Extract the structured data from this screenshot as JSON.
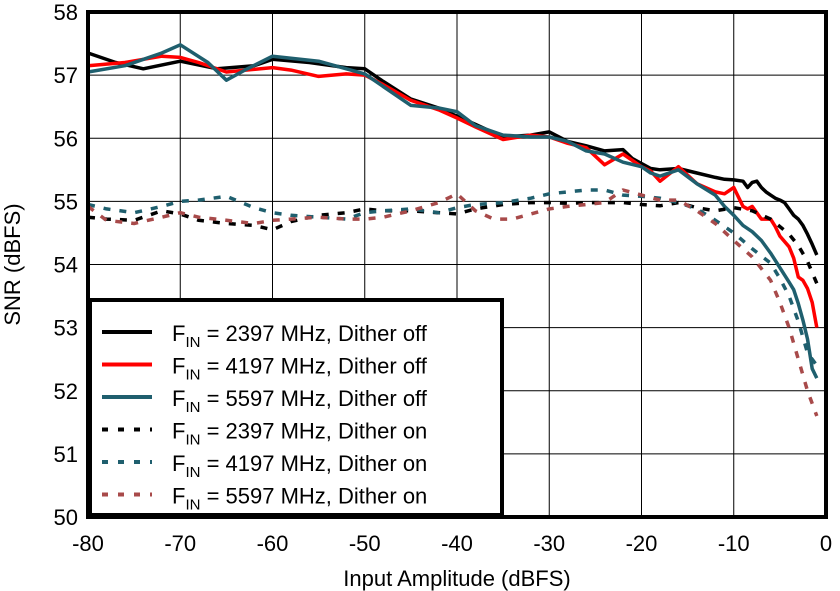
{
  "chart_data": {
    "type": "line",
    "title": "",
    "xlabel": "Input Amplitude (dBFS)",
    "ylabel": "SNR (dBFS)",
    "xlim": [
      -80,
      0
    ],
    "ylim": [
      50,
      58
    ],
    "xticks": [
      -80,
      -70,
      -60,
      -50,
      -40,
      -30,
      -20,
      -10,
      0
    ],
    "xtick_labels": [
      "-80",
      "-70",
      "-60",
      "-50",
      "-40",
      "-30",
      "-20",
      "-10",
      "0"
    ],
    "yticks": [
      50,
      51,
      52,
      53,
      54,
      55,
      56,
      57,
      58
    ],
    "ytick_labels": [
      "50",
      "51",
      "52",
      "53",
      "54",
      "55",
      "56",
      "57",
      "58"
    ],
    "grid": true,
    "legend_position": "bottom-left",
    "series": [
      {
        "legend_main": "F",
        "legend_sub": "IN",
        "legend_rest": " = 2397 MHz, Dither off",
        "color": "#000000",
        "dash": "solid",
        "x": [
          -80,
          -77,
          -74,
          -70,
          -66,
          -62,
          -60,
          -56,
          -52,
          -50,
          -48,
          -45,
          -42,
          -40,
          -38,
          -35,
          -32,
          -30,
          -28,
          -26,
          -24,
          -22,
          -21,
          -20,
          -19,
          -18,
          -16,
          -14,
          -12,
          -11,
          -10,
          -9,
          -8.5,
          -8,
          -7.5,
          -7,
          -6.5,
          -6,
          -5.5,
          -5,
          -4.5,
          -4,
          -3.5,
          -3,
          -2.5,
          -2,
          -1.5,
          -1
        ],
        "values": [
          57.35,
          57.2,
          57.1,
          57.22,
          57.1,
          57.15,
          57.25,
          57.2,
          57.12,
          57.1,
          56.9,
          56.62,
          56.48,
          56.35,
          56.22,
          56.02,
          56.05,
          56.1,
          55.95,
          55.88,
          55.8,
          55.82,
          55.68,
          55.6,
          55.52,
          55.5,
          55.52,
          55.45,
          55.38,
          55.35,
          55.34,
          55.32,
          55.22,
          55.3,
          55.32,
          55.22,
          55.15,
          55.1,
          55.05,
          55.02,
          54.98,
          54.88,
          54.78,
          54.72,
          54.62,
          54.48,
          54.32,
          54.15
        ]
      },
      {
        "legend_main": "F",
        "legend_sub": "IN",
        "legend_rest": " = 4197 MHz, Dither off",
        "color": "#ff0000",
        "dash": "solid",
        "x": [
          -80,
          -76,
          -72,
          -70,
          -68,
          -65,
          -60,
          -58,
          -55,
          -52,
          -50,
          -48,
          -45,
          -42,
          -40,
          -38,
          -35,
          -32,
          -30,
          -28,
          -26,
          -24,
          -22,
          -20,
          -19,
          -18,
          -16,
          -14,
          -12,
          -11,
          -10,
          -9,
          -8.5,
          -8,
          -7,
          -6,
          -5.5,
          -5,
          -4,
          -3.5,
          -3,
          -2.5,
          -2,
          -1.5,
          -1
        ],
        "values": [
          57.15,
          57.2,
          57.3,
          57.28,
          57.2,
          57.05,
          57.12,
          57.08,
          56.98,
          57.02,
          57.0,
          56.85,
          56.6,
          56.45,
          56.32,
          56.18,
          55.98,
          56.05,
          56.02,
          55.92,
          55.85,
          55.58,
          55.75,
          55.55,
          55.48,
          55.32,
          55.55,
          55.28,
          55.15,
          55.12,
          55.22,
          54.92,
          54.88,
          54.92,
          54.72,
          54.72,
          54.6,
          54.45,
          54.28,
          54.1,
          53.8,
          53.75,
          53.62,
          53.4,
          53.0
        ]
      },
      {
        "legend_main": "F",
        "legend_sub": "IN",
        "legend_rest": " = 5597 MHz, Dither off",
        "color": "#1f5f6e",
        "dash": "solid",
        "x": [
          -80,
          -76,
          -72,
          -70,
          -67,
          -65,
          -63,
          -60,
          -55,
          -52,
          -50,
          -48,
          -45,
          -42,
          -40,
          -38,
          -35,
          -32,
          -30,
          -28,
          -26,
          -24,
          -22,
          -20,
          -19,
          -18,
          -16,
          -14,
          -12,
          -11,
          -10,
          -9,
          -8,
          -7,
          -6,
          -5,
          -4,
          -3.5,
          -3,
          -2.5,
          -2,
          -1.5,
          -1
        ],
        "values": [
          57.05,
          57.15,
          57.35,
          57.48,
          57.2,
          56.92,
          57.08,
          57.3,
          57.22,
          57.1,
          57.02,
          56.82,
          56.52,
          56.48,
          56.42,
          56.2,
          56.05,
          56.02,
          56.02,
          55.95,
          55.8,
          55.75,
          55.62,
          55.55,
          55.45,
          55.4,
          55.5,
          55.28,
          55.1,
          54.92,
          54.78,
          54.62,
          54.52,
          54.38,
          54.18,
          53.95,
          53.72,
          53.6,
          53.38,
          53.12,
          52.82,
          52.35,
          52.2
        ]
      },
      {
        "legend_main": "F",
        "legend_sub": "IN",
        "legend_rest": " = 2397 MHz, Dither on",
        "color": "#000000",
        "dash": "dotted",
        "x": [
          -80,
          -78,
          -75,
          -72,
          -70,
          -68,
          -65,
          -62,
          -60,
          -58,
          -55,
          -52,
          -50,
          -48,
          -45,
          -42,
          -40,
          -38,
          -35,
          -32,
          -30,
          -28,
          -26,
          -24,
          -22,
          -20,
          -18,
          -16,
          -14,
          -12,
          -10,
          -8,
          -6,
          -5,
          -4,
          -3,
          -2,
          -1
        ],
        "values": [
          54.75,
          54.72,
          54.7,
          54.85,
          54.8,
          54.7,
          54.65,
          54.62,
          54.55,
          54.68,
          54.78,
          54.82,
          54.88,
          54.85,
          54.85,
          54.82,
          54.8,
          54.88,
          54.95,
          54.98,
          54.98,
          54.97,
          54.98,
          54.98,
          54.98,
          54.95,
          54.93,
          54.98,
          54.9,
          54.85,
          54.9,
          54.85,
          54.72,
          54.6,
          54.48,
          54.3,
          54.05,
          53.7
        ]
      },
      {
        "legend_main": "F",
        "legend_sub": "IN",
        "legend_rest": " = 4197 MHz, Dither on",
        "color": "#1f5f6e",
        "dash": "dotted",
        "x": [
          -80,
          -78,
          -75,
          -72,
          -70,
          -68,
          -65,
          -62,
          -60,
          -58,
          -55,
          -52,
          -50,
          -48,
          -45,
          -42,
          -40,
          -38,
          -35,
          -32,
          -30,
          -28,
          -26,
          -24,
          -22,
          -20,
          -18,
          -16,
          -14,
          -12,
          -10,
          -8,
          -6,
          -5,
          -4,
          -3,
          -2,
          -1
        ],
        "values": [
          54.95,
          54.88,
          54.82,
          54.92,
          55.0,
          55.02,
          55.08,
          54.9,
          54.82,
          54.78,
          54.75,
          54.72,
          54.82,
          54.85,
          54.88,
          54.82,
          54.9,
          54.95,
          54.98,
          55.05,
          55.12,
          55.15,
          55.18,
          55.18,
          55.1,
          55.08,
          55.05,
          54.98,
          54.88,
          54.7,
          54.5,
          54.25,
          54.02,
          53.78,
          53.5,
          53.1,
          52.6,
          52.4
        ]
      },
      {
        "legend_main": "F",
        "legend_sub": "IN",
        "legend_rest": " = 5597 MHz, Dither on",
        "color": "#a84a4a",
        "dash": "dotted",
        "x": [
          -80,
          -78,
          -75,
          -72,
          -70,
          -68,
          -65,
          -62,
          -60,
          -58,
          -55,
          -52,
          -50,
          -48,
          -45,
          -42,
          -40,
          -38,
          -36,
          -34,
          -32,
          -30,
          -28,
          -26,
          -24,
          -22,
          -20,
          -18,
          -16,
          -14,
          -12,
          -10,
          -8,
          -6,
          -5,
          -4,
          -3,
          -2,
          -1
        ],
        "values": [
          54.92,
          54.7,
          54.65,
          54.75,
          54.82,
          54.75,
          54.7,
          54.65,
          54.7,
          54.72,
          54.75,
          54.72,
          54.72,
          54.75,
          54.85,
          54.98,
          55.12,
          54.85,
          54.72,
          54.72,
          54.8,
          54.88,
          54.92,
          54.95,
          54.98,
          55.18,
          55.1,
          55.02,
          55.02,
          54.85,
          54.65,
          54.38,
          54.12,
          53.75,
          53.4,
          53.0,
          52.5,
          52.0,
          51.6
        ]
      }
    ]
  }
}
